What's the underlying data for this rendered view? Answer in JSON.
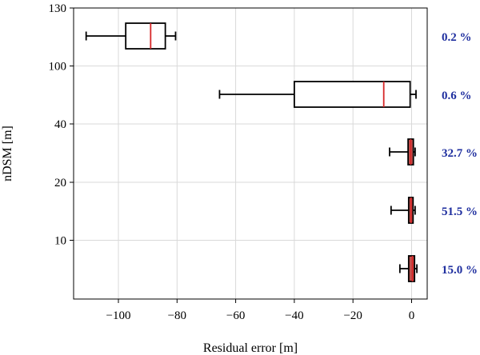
{
  "chart_data": {
    "type": "boxplot",
    "orientation": "horizontal",
    "xlabel": "Residual error [m]",
    "ylabel": "nDSM [m]",
    "xlim": [
      -120,
      2
    ],
    "xticks": [
      -100,
      -80,
      -60,
      -40,
      -20,
      0
    ],
    "xtick_labels": [
      "−100",
      "−80",
      "−60",
      "−40",
      "−20",
      "0"
    ],
    "ytick_labels": [
      "130",
      "100",
      "40",
      "20",
      "10"
    ],
    "grid": true,
    "groups": [
      {
        "whisker_low": -111,
        "q1": -97.5,
        "median": -89,
        "q3": -84,
        "whisker_high": -80.5,
        "percentage": "0.2 %",
        "box_color": "#ffffff"
      },
      {
        "whisker_low": -65.5,
        "q1": -40,
        "median": -9.5,
        "q3": -0.5,
        "whisker_high": 1.5,
        "percentage": "0.6 %",
        "box_color": "#ffffff"
      },
      {
        "whisker_low": -7.5,
        "q1": -1.2,
        "median": -0.3,
        "q3": 0.6,
        "whisker_high": 1.2,
        "percentage": "32.7 %",
        "box_color": "#c0504d"
      },
      {
        "whisker_low": -7,
        "q1": -1.0,
        "median": -0.2,
        "q3": 0.5,
        "whisker_high": 1.2,
        "percentage": "51.5 %",
        "box_color": "#c0504d"
      },
      {
        "whisker_low": -4,
        "q1": -1.0,
        "median": 0.3,
        "q3": 1.0,
        "whisker_high": 1.8,
        "percentage": "15.0 %",
        "box_color": "#c0504d"
      }
    ],
    "colors": {
      "median": "#d62728",
      "percentage_text": "#1f2f9f",
      "grid": "#d9d9d9",
      "axis": "#000000"
    }
  }
}
